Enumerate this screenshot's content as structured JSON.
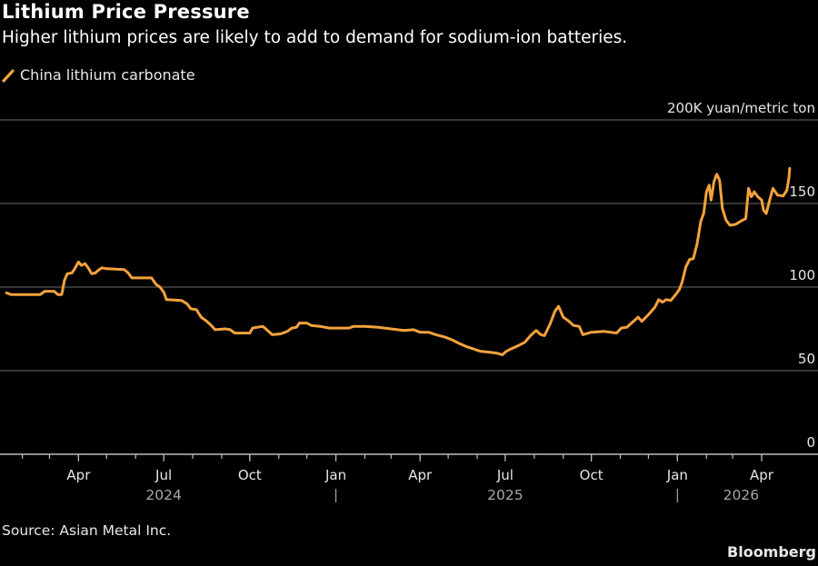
{
  "chart_data": {
    "type": "line",
    "title": "Lithium Price Pressure",
    "subtitle": "Higher lithium prices are likely to add to demand for sodium-ion batteries.",
    "legend": [
      {
        "name": "China lithium carbonate",
        "color": "#f4a23c"
      }
    ],
    "legend_position": "top-left",
    "ylabel": "",
    "y_unit_label": "200K yuan/metric ton",
    "ylim": [
      0,
      200
    ],
    "yticks": [
      {
        "value": 200,
        "label": "200K yuan/metric ton"
      },
      {
        "value": 150,
        "label": "150"
      },
      {
        "value": 100,
        "label": "100"
      },
      {
        "value": 50,
        "label": "50"
      },
      {
        "value": 0,
        "label": "0"
      }
    ],
    "y_axis_side": "right",
    "grid": true,
    "xlim": [
      "2024-01-01",
      "2026-05-01"
    ],
    "xticks_minor": [
      "2024-02-01",
      "2024-03-01",
      "2024-04-01",
      "2024-05-01",
      "2024-06-01",
      "2024-07-01",
      "2024-08-01",
      "2024-09-01",
      "2024-10-01",
      "2024-11-01",
      "2024-12-01",
      "2025-01-01",
      "2025-02-01",
      "2025-03-01",
      "2025-04-01",
      "2025-05-01",
      "2025-06-01",
      "2025-07-01",
      "2025-08-01",
      "2025-09-01",
      "2025-10-01",
      "2025-11-01",
      "2025-12-01",
      "2026-01-01",
      "2026-02-01",
      "2026-03-01",
      "2026-04-01"
    ],
    "xticks_major": [
      {
        "date": "2024-04-01",
        "label": "Apr"
      },
      {
        "date": "2024-07-01",
        "label": "Jul"
      },
      {
        "date": "2024-10-01",
        "label": "Oct"
      },
      {
        "date": "2025-01-01",
        "label": "Jan"
      },
      {
        "date": "2025-04-01",
        "label": "Apr"
      },
      {
        "date": "2025-07-01",
        "label": "Jul"
      },
      {
        "date": "2025-10-01",
        "label": "Oct"
      },
      {
        "date": "2026-01-01",
        "label": "Jan"
      },
      {
        "date": "2026-04-01",
        "label": "Apr"
      }
    ],
    "year_labels": [
      {
        "date": "2024-07-01",
        "label": "2024"
      },
      {
        "date": "2025-07-01",
        "label": "2025"
      },
      {
        "date": "2026-03-10",
        "label": "2026"
      }
    ],
    "year_separators": [
      "2025-01-01",
      "2026-01-01"
    ],
    "series": [
      {
        "name": "China lithium carbonate",
        "color": "#f4a23c",
        "points": [
          [
            "2024-01-15",
            96.5
          ],
          [
            "2024-01-20",
            95.5
          ],
          [
            "2024-02-01",
            95.5
          ],
          [
            "2024-02-20",
            95.5
          ],
          [
            "2024-02-25",
            97.5
          ],
          [
            "2024-03-06",
            97.5
          ],
          [
            "2024-03-10",
            95.5
          ],
          [
            "2024-03-14",
            95.5
          ],
          [
            "2024-03-17",
            104
          ],
          [
            "2024-03-20",
            108
          ],
          [
            "2024-03-25",
            108.5
          ],
          [
            "2024-03-29",
            112
          ],
          [
            "2024-04-01",
            115
          ],
          [
            "2024-04-04",
            113
          ],
          [
            "2024-04-08",
            114
          ],
          [
            "2024-04-12",
            111
          ],
          [
            "2024-04-15",
            108
          ],
          [
            "2024-04-19",
            108.5
          ],
          [
            "2024-04-22",
            110
          ],
          [
            "2024-04-26",
            111.5
          ],
          [
            "2024-05-01",
            111
          ],
          [
            "2024-05-20",
            110.5
          ],
          [
            "2024-05-24",
            108.5
          ],
          [
            "2024-05-28",
            105.5
          ],
          [
            "2024-06-18",
            105.5
          ],
          [
            "2024-06-23",
            101.5
          ],
          [
            "2024-06-27",
            100
          ],
          [
            "2024-07-01",
            97
          ],
          [
            "2024-07-04",
            92.5
          ],
          [
            "2024-07-20",
            92
          ],
          [
            "2024-07-26",
            90
          ],
          [
            "2024-07-30",
            87
          ],
          [
            "2024-08-05",
            86.5
          ],
          [
            "2024-08-10",
            82
          ],
          [
            "2024-08-15",
            80
          ],
          [
            "2024-08-20",
            77.5
          ],
          [
            "2024-08-25",
            74.5
          ],
          [
            "2024-09-05",
            75
          ],
          [
            "2024-09-10",
            74.5
          ],
          [
            "2024-09-15",
            72.5
          ],
          [
            "2024-09-25",
            72.5
          ],
          [
            "2024-10-01",
            72.5
          ],
          [
            "2024-10-04",
            75.5
          ],
          [
            "2024-10-15",
            76.5
          ],
          [
            "2024-10-20",
            74
          ],
          [
            "2024-10-25",
            71.5
          ],
          [
            "2024-11-03",
            72
          ],
          [
            "2024-11-10",
            73.5
          ],
          [
            "2024-11-15",
            75.5
          ],
          [
            "2024-11-20",
            76
          ],
          [
            "2024-11-23",
            78.5
          ],
          [
            "2024-12-01",
            78.5
          ],
          [
            "2024-12-06",
            77
          ],
          [
            "2024-12-15",
            76.5
          ],
          [
            "2024-12-25",
            75.5
          ],
          [
            "2025-01-08",
            75.5
          ],
          [
            "2025-01-15",
            75.5
          ],
          [
            "2025-01-20",
            76.5
          ],
          [
            "2025-02-01",
            76.5
          ],
          [
            "2025-02-15",
            76
          ],
          [
            "2025-03-01",
            75
          ],
          [
            "2025-03-15",
            74
          ],
          [
            "2025-03-25",
            74.5
          ],
          [
            "2025-04-01",
            73
          ],
          [
            "2025-04-10",
            73
          ],
          [
            "2025-04-18",
            71.5
          ],
          [
            "2025-04-28",
            70
          ],
          [
            "2025-05-05",
            68.5
          ],
          [
            "2025-05-12",
            66.5
          ],
          [
            "2025-05-20",
            64.5
          ],
          [
            "2025-05-28",
            63
          ],
          [
            "2025-06-05",
            61.5
          ],
          [
            "2025-06-15",
            61
          ],
          [
            "2025-06-22",
            60.5
          ],
          [
            "2025-06-28",
            59.5
          ],
          [
            "2025-07-02",
            61.5
          ],
          [
            "2025-07-07",
            63
          ],
          [
            "2025-07-15",
            65
          ],
          [
            "2025-07-22",
            67
          ],
          [
            "2025-07-28",
            71
          ],
          [
            "2025-08-03",
            74
          ],
          [
            "2025-08-08",
            71.5
          ],
          [
            "2025-08-12",
            71
          ],
          [
            "2025-08-18",
            78
          ],
          [
            "2025-08-23",
            85.5
          ],
          [
            "2025-08-27",
            88.5
          ],
          [
            "2025-09-01",
            82
          ],
          [
            "2025-09-06",
            80
          ],
          [
            "2025-09-12",
            77
          ],
          [
            "2025-09-18",
            76.5
          ],
          [
            "2025-09-22",
            71.5
          ],
          [
            "2025-10-01",
            73
          ],
          [
            "2025-10-15",
            73.5
          ],
          [
            "2025-10-28",
            72.5
          ],
          [
            "2025-11-02",
            75.5
          ],
          [
            "2025-11-08",
            76
          ],
          [
            "2025-11-14",
            79
          ],
          [
            "2025-11-20",
            82
          ],
          [
            "2025-11-24",
            79.5
          ],
          [
            "2025-12-01",
            83.5
          ],
          [
            "2025-12-08",
            88
          ],
          [
            "2025-12-12",
            92.5
          ],
          [
            "2025-12-16",
            91
          ],
          [
            "2025-12-20",
            92.5
          ],
          [
            "2025-12-25",
            92
          ],
          [
            "2025-12-30",
            95.5
          ],
          [
            "2026-01-03",
            98.5
          ],
          [
            "2026-01-06",
            103
          ],
          [
            "2026-01-10",
            112
          ],
          [
            "2026-01-14",
            116.5
          ],
          [
            "2026-01-18",
            117
          ],
          [
            "2026-01-22",
            126
          ],
          [
            "2026-01-26",
            139.5
          ],
          [
            "2026-01-29",
            144
          ],
          [
            "2026-02-01",
            157
          ],
          [
            "2026-02-04",
            161
          ],
          [
            "2026-02-06",
            152
          ],
          [
            "2026-02-09",
            163
          ],
          [
            "2026-02-12",
            167.5
          ],
          [
            "2026-02-15",
            164
          ],
          [
            "2026-02-18",
            147
          ],
          [
            "2026-02-22",
            140
          ],
          [
            "2026-02-26",
            137
          ],
          [
            "2026-03-04",
            137.5
          ],
          [
            "2026-03-10",
            139.5
          ],
          [
            "2026-03-15",
            141
          ],
          [
            "2026-03-18",
            159
          ],
          [
            "2026-03-21",
            154
          ],
          [
            "2026-03-24",
            157
          ],
          [
            "2026-03-28",
            154
          ],
          [
            "2026-04-01",
            152
          ],
          [
            "2026-04-03",
            146
          ],
          [
            "2026-04-06",
            144
          ],
          [
            "2026-04-10",
            153
          ],
          [
            "2026-04-13",
            159
          ],
          [
            "2026-04-18",
            155
          ],
          [
            "2026-04-24",
            154.5
          ],
          [
            "2026-04-28",
            158
          ],
          [
            "2026-04-30",
            165
          ],
          [
            "2026-05-01",
            171
          ]
        ]
      }
    ],
    "source": "Source: Asian Metal Inc.",
    "brand": "Bloomberg"
  }
}
